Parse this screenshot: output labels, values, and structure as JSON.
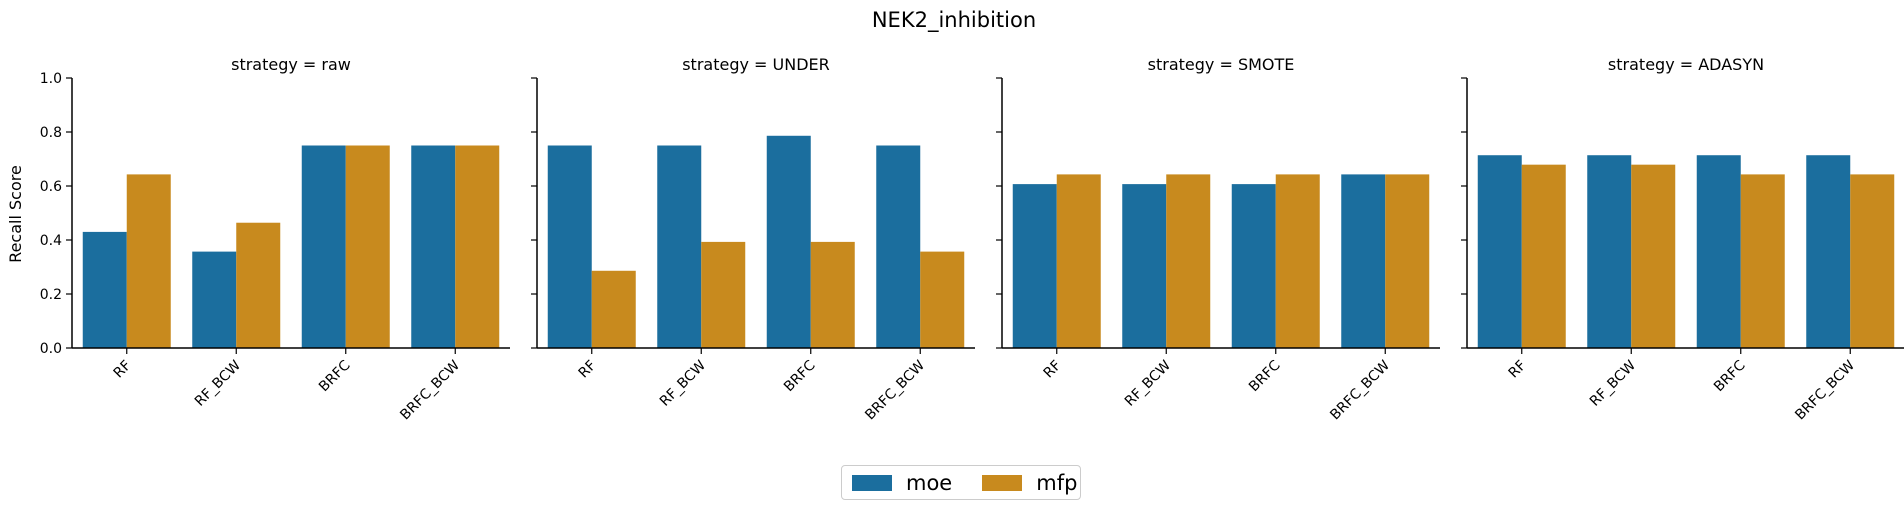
{
  "chart_data": {
    "type": "bar",
    "title": "NEK2_inhibition",
    "ylabel": "Recall Score",
    "ylim": [
      0,
      1.0
    ],
    "yticks": [
      "0.0",
      "0.2",
      "0.4",
      "0.6",
      "0.8",
      "1.0"
    ],
    "categories": [
      "RF",
      "RF_BCW",
      "BRFC",
      "BRFC_BCW"
    ],
    "legend": {
      "placement": "bottom-center"
    },
    "colors": {
      "moe": "#1b6e9e",
      "mfp": "#c88a1e"
    },
    "panels": [
      {
        "title": "strategy = raw",
        "series": [
          {
            "name": "moe",
            "values": [
              0.43,
              0.357,
              0.75,
              0.75
            ]
          },
          {
            "name": "mfp",
            "values": [
              0.643,
              0.464,
              0.75,
              0.75
            ]
          }
        ]
      },
      {
        "title": "strategy = UNDER",
        "series": [
          {
            "name": "moe",
            "values": [
              0.75,
              0.75,
              0.786,
              0.75
            ]
          },
          {
            "name": "mfp",
            "values": [
              0.286,
              0.393,
              0.393,
              0.357
            ]
          }
        ]
      },
      {
        "title": "strategy = SMOTE",
        "series": [
          {
            "name": "moe",
            "values": [
              0.607,
              0.607,
              0.607,
              0.643
            ]
          },
          {
            "name": "mfp",
            "values": [
              0.643,
              0.643,
              0.643,
              0.643
            ]
          }
        ]
      },
      {
        "title": "strategy = ADASYN",
        "series": [
          {
            "name": "moe",
            "values": [
              0.714,
              0.714,
              0.714,
              0.714
            ]
          },
          {
            "name": "mfp",
            "values": [
              0.679,
              0.679,
              0.643,
              0.643
            ]
          }
        ]
      }
    ]
  }
}
